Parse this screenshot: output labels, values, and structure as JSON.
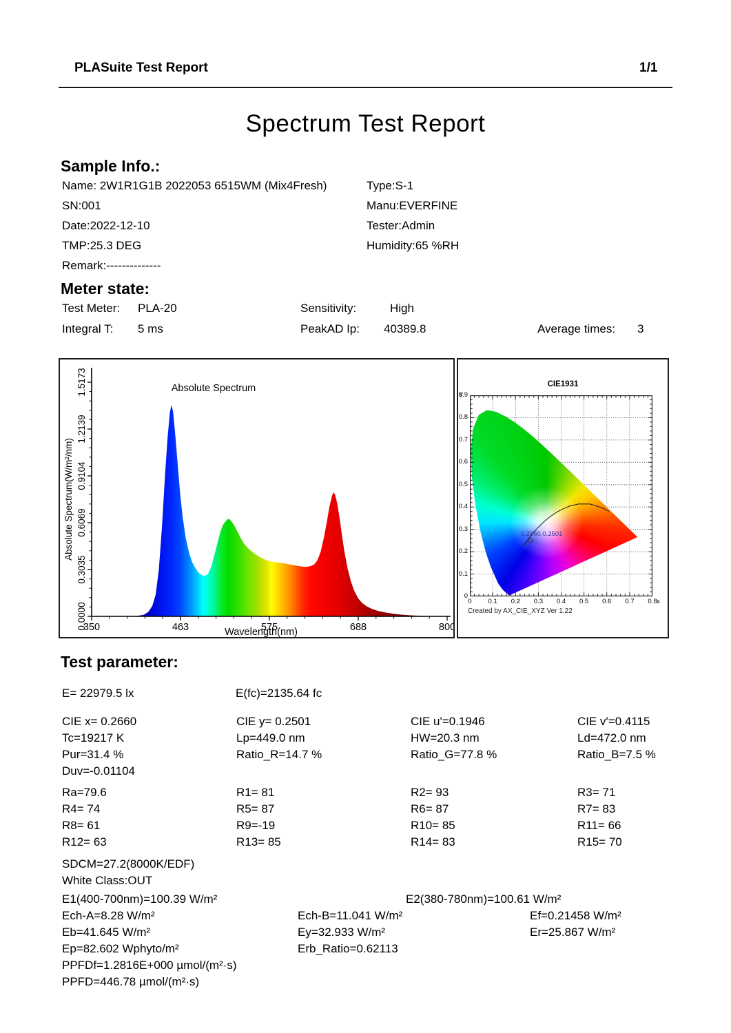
{
  "header": {
    "app_title": "PLASuite Test Report",
    "page_number": "1/1"
  },
  "title": "Spectrum Test Report",
  "sample_info": {
    "heading": "Sample Info.:",
    "left": [
      "Name: 2W1R1G1B 2022053 6515WM (Mix4Fresh)",
      "SN:001",
      "Date:2022-12-10",
      "TMP:25.3 DEG",
      "Remark:--------------"
    ],
    "right": [
      "Type:S-1",
      "Manu:EVERFINE",
      "Tester:Admin",
      "Humidity:65 %RH"
    ]
  },
  "meter_state": {
    "heading": "Meter state:",
    "cells": [
      "Test Meter:",
      "PLA-20",
      "Sensitivity:",
      "High",
      "Integral T:",
      "5 ms",
      "PeakAD Ip:",
      "40389.8",
      "Average times:",
      "3"
    ]
  },
  "test_parameter": {
    "heading": "Test parameter:",
    "e_row": [
      "E= 22979.5 lx",
      "E(fc)=2135.64 fc"
    ],
    "cie_grid": [
      [
        "CIE x= 0.2660",
        "CIE y= 0.2501",
        "CIE u'=0.1946",
        "CIE v'=0.4115"
      ],
      [
        "Tc=19217 K",
        "Lp=449.0 nm",
        "HW=20.3 nm",
        "Ld=472.0 nm"
      ],
      [
        "Pur=31.4 %",
        "Ratio_R=14.7 %",
        "Ratio_G=77.8 %",
        "Ratio_B=7.5 %"
      ],
      [
        "Duv=-0.01104",
        "",
        "",
        ""
      ]
    ],
    "r_grid": [
      [
        "Ra=79.6",
        "R1= 81",
        "R2= 93",
        "R3= 71"
      ],
      [
        "R4= 74",
        "R5= 87",
        "R6= 87",
        "R7= 83"
      ],
      [
        "R8= 61",
        "R9=-19",
        "R10= 85",
        "R11= 66"
      ],
      [
        "R12= 63",
        "R13= 85",
        "R14= 83",
        "R15= 70"
      ]
    ],
    "sdcm": "SDCM=27.2(8000K/EDF)",
    "white_class": "White Class:OUT",
    "e12_row": [
      "E1(400-700nm)=100.39 W/m²",
      "E2(380-780nm)=100.61 W/m²"
    ],
    "ech_row": [
      "Ech-A=8.28 W/m²",
      "Ech-B=11.041 W/m²",
      "Ef=0.21458 W/m²"
    ],
    "eb_row": [
      "Eb=41.645 W/m²",
      "Ey=32.933 W/m²",
      "Er=25.867 W/m²"
    ],
    "ep_row": [
      "Ep=82.602 Wphyto/m²",
      "Erb_Ratio=0.62113"
    ],
    "ppfdf": "PPFDf=1.2816E+000 µmol/(m²·s)",
    "ppfd": "PPFD=446.78 µmol/(m²·s)"
  },
  "chart_data": [
    {
      "type": "area",
      "title": "Absolute Spectrum",
      "xlabel": "Wavelength(nm)",
      "ylabel": "Absolute Spectrum(W/m²/nm)",
      "xlim": [
        350,
        800
      ],
      "ylim": [
        0,
        1.5173
      ],
      "x_tick_values": [
        350,
        462.5,
        575,
        687.5,
        800
      ],
      "x_tick_labels": [
        "350",
        "463",
        "575",
        "688",
        "800"
      ],
      "y_ticks": [
        "0.0000",
        "0.3035",
        "0.6069",
        "0.9104",
        "1.2139",
        "1.5173"
      ],
      "points": [
        [
          380,
          0
        ],
        [
          408,
          0.003
        ],
        [
          416,
          0.01
        ],
        [
          422,
          0.03
        ],
        [
          427,
          0.07
        ],
        [
          431,
          0.14
        ],
        [
          435,
          0.3
        ],
        [
          439,
          0.58
        ],
        [
          443,
          0.92
        ],
        [
          446,
          1.15
        ],
        [
          449,
          1.32
        ],
        [
          451,
          1.37
        ],
        [
          453,
          1.33
        ],
        [
          456,
          1.17
        ],
        [
          459,
          0.98
        ],
        [
          462,
          0.8
        ],
        [
          465,
          0.65
        ],
        [
          469,
          0.51
        ],
        [
          473,
          0.42
        ],
        [
          477,
          0.355
        ],
        [
          481,
          0.315
        ],
        [
          485,
          0.285
        ],
        [
          489,
          0.268
        ],
        [
          493,
          0.263
        ],
        [
          497,
          0.272
        ],
        [
          501,
          0.315
        ],
        [
          505,
          0.39
        ],
        [
          509,
          0.47
        ],
        [
          513,
          0.55
        ],
        [
          517,
          0.6
        ],
        [
          521,
          0.625
        ],
        [
          524,
          0.632
        ],
        [
          527,
          0.615
        ],
        [
          531,
          0.585
        ],
        [
          535,
          0.545
        ],
        [
          539,
          0.505
        ],
        [
          543,
          0.47
        ],
        [
          547,
          0.447
        ],
        [
          551,
          0.428
        ],
        [
          556,
          0.407
        ],
        [
          561,
          0.39
        ],
        [
          566,
          0.376
        ],
        [
          571,
          0.365
        ],
        [
          576,
          0.357
        ],
        [
          581,
          0.352
        ],
        [
          586,
          0.349
        ],
        [
          591,
          0.346
        ],
        [
          596,
          0.341
        ],
        [
          601,
          0.336
        ],
        [
          606,
          0.331
        ],
        [
          611,
          0.327
        ],
        [
          616,
          0.323
        ],
        [
          620,
          0.321
        ],
        [
          624,
          0.322
        ],
        [
          628,
          0.327
        ],
        [
          632,
          0.338
        ],
        [
          636,
          0.365
        ],
        [
          640,
          0.42
        ],
        [
          644,
          0.51
        ],
        [
          648,
          0.62
        ],
        [
          651,
          0.71
        ],
        [
          654,
          0.775
        ],
        [
          656,
          0.805
        ],
        [
          658,
          0.79
        ],
        [
          661,
          0.73
        ],
        [
          664,
          0.63
        ],
        [
          667,
          0.52
        ],
        [
          670,
          0.42
        ],
        [
          674,
          0.31
        ],
        [
          678,
          0.23
        ],
        [
          682,
          0.17
        ],
        [
          687,
          0.12
        ],
        [
          692,
          0.088
        ],
        [
          698,
          0.065
        ],
        [
          705,
          0.048
        ],
        [
          713,
          0.035
        ],
        [
          722,
          0.025
        ],
        [
          732,
          0.017
        ],
        [
          742,
          0.011
        ],
        [
          752,
          0.007
        ],
        [
          765,
          0.004
        ],
        [
          780,
          0.002
        ],
        [
          800,
          0
        ]
      ],
      "gradient": [
        [
          350,
          "#0000a0"
        ],
        [
          420,
          "#0000c8"
        ],
        [
          438,
          "#0013f0"
        ],
        [
          452,
          "#0028ff"
        ],
        [
          463,
          "#004cff"
        ],
        [
          473,
          "#0087ff"
        ],
        [
          483,
          "#00c3ff"
        ],
        [
          491,
          "#00ffff"
        ],
        [
          499,
          "#00ffc3"
        ],
        [
          507,
          "#00f483"
        ],
        [
          514,
          "#0ae929"
        ],
        [
          523,
          "#00dd00"
        ],
        [
          538,
          "#3ce000"
        ],
        [
          550,
          "#78e400"
        ],
        [
          561,
          "#aae000"
        ],
        [
          571,
          "#e0e400"
        ],
        [
          578,
          "#ffff00"
        ],
        [
          586,
          "#ffd500"
        ],
        [
          594,
          "#ffb000"
        ],
        [
          602,
          "#ff8800"
        ],
        [
          610,
          "#ff5500"
        ],
        [
          618,
          "#ff2600"
        ],
        [
          627,
          "#ff0800"
        ],
        [
          642,
          "#f60000"
        ],
        [
          660,
          "#e60000"
        ],
        [
          678,
          "#cd0000"
        ],
        [
          698,
          "#ad0000"
        ],
        [
          722,
          "#8f0000"
        ],
        [
          755,
          "#7a0000"
        ],
        [
          800,
          "#6b0000"
        ]
      ]
    },
    {
      "type": "chromaticity",
      "title": "CIE1931",
      "xlabel": "x",
      "ylabel": "y",
      "xlim": [
        0,
        0.8
      ],
      "ylim": [
        0,
        0.9
      ],
      "grid_step": 0.1,
      "point": {
        "x": 0.266,
        "y": 0.2501,
        "label": "0.2660,0.2501"
      },
      "annotation_color": "#333399",
      "credit": "Created by AX_CIE_XYZ Ver 1.22",
      "white_point": {
        "x": 0.335,
        "y": 0.33
      },
      "locus": [
        [
          0.1741,
          0.005
        ],
        [
          0.1714,
          0.0051
        ],
        [
          0.1689,
          0.0069
        ],
        [
          0.1644,
          0.0109
        ],
        [
          0.1566,
          0.0177
        ],
        [
          0.144,
          0.0297
        ],
        [
          0.1241,
          0.0578
        ],
        [
          0.0913,
          0.1327
        ],
        [
          0.0687,
          0.2007
        ],
        [
          0.0454,
          0.295
        ],
        [
          0.0235,
          0.4127
        ],
        [
          0.0082,
          0.5384
        ],
        [
          0.0039,
          0.6548
        ],
        [
          0.0139,
          0.7502
        ],
        [
          0.0389,
          0.812
        ],
        [
          0.0743,
          0.8338
        ],
        [
          0.1142,
          0.8262
        ],
        [
          0.1547,
          0.8059
        ],
        [
          0.1929,
          0.7816
        ],
        [
          0.2296,
          0.7543
        ],
        [
          0.2658,
          0.7243
        ],
        [
          0.3016,
          0.6923
        ],
        [
          0.3373,
          0.6589
        ],
        [
          0.3731,
          0.6245
        ],
        [
          0.4087,
          0.5896
        ],
        [
          0.4441,
          0.5547
        ],
        [
          0.4788,
          0.5202
        ],
        [
          0.5125,
          0.4866
        ],
        [
          0.5448,
          0.4544
        ],
        [
          0.5752,
          0.4242
        ],
        [
          0.6029,
          0.3965
        ],
        [
          0.627,
          0.3725
        ],
        [
          0.6482,
          0.3514
        ],
        [
          0.6658,
          0.334
        ],
        [
          0.6801,
          0.3197
        ],
        [
          0.6915,
          0.3083
        ],
        [
          0.7006,
          0.2993
        ],
        [
          0.714,
          0.2859
        ],
        [
          0.726,
          0.274
        ],
        [
          0.7347,
          0.2653
        ]
      ],
      "planckian": [
        [
          0.238,
          0.228
        ],
        [
          0.2565,
          0.2577
        ],
        [
          0.2806,
          0.2883
        ],
        [
          0.2952,
          0.3048
        ],
        [
          0.3135,
          0.3236
        ],
        [
          0.3451,
          0.3516
        ],
        [
          0.3805,
          0.3768
        ],
        [
          0.4059,
          0.3907
        ],
        [
          0.4369,
          0.4041
        ],
        [
          0.477,
          0.4137
        ],
        [
          0.5267,
          0.4133
        ],
        [
          0.577,
          0.3973
        ],
        [
          0.6101,
          0.3804
        ]
      ],
      "wheel": [
        [
          0,
          "#00c800"
        ],
        [
          46,
          "#f0e800"
        ],
        [
          60,
          "#ffc800"
        ],
        [
          78,
          "#ff7800"
        ],
        [
          95,
          "#ff2800"
        ],
        [
          112,
          "#ff0000"
        ],
        [
          132,
          "#ff0064"
        ],
        [
          152,
          "#f000d2"
        ],
        [
          172,
          "#b400ff"
        ],
        [
          195,
          "#5000ff"
        ],
        [
          215,
          "#0000e6"
        ],
        [
          240,
          "#0040ff"
        ],
        [
          258,
          "#00a0ff"
        ],
        [
          270,
          "#00e6ff"
        ],
        [
          285,
          "#00ffd2"
        ],
        [
          300,
          "#00f078"
        ],
        [
          320,
          "#00dc28"
        ],
        [
          360,
          "#00c800"
        ]
      ]
    }
  ]
}
